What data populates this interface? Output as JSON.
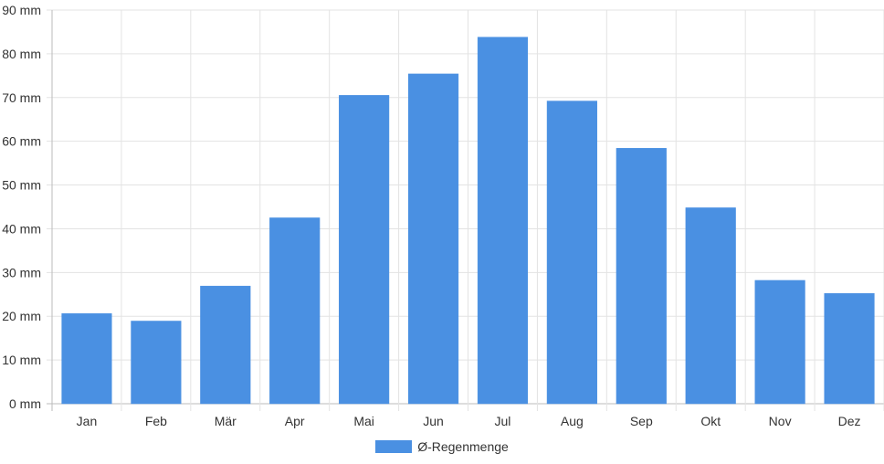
{
  "chart_data": {
    "type": "bar",
    "categories": [
      "Jan",
      "Feb",
      "Mär",
      "Apr",
      "Mai",
      "Jun",
      "Jul",
      "Aug",
      "Sep",
      "Okt",
      "Nov",
      "Dez"
    ],
    "series": [
      {
        "name": "Ø-Regenmenge",
        "values": [
          20.6,
          18.9,
          26.9,
          42.5,
          70.5,
          75.4,
          83.8,
          69.2,
          58.4,
          44.8,
          28.2,
          25.2
        ],
        "color": "#4a90e2"
      }
    ],
    "y_unit": "mm",
    "ylim": [
      0,
      90
    ],
    "y_ticks": [
      "0 mm",
      "10 mm",
      "20 mm",
      "30 mm",
      "40 mm",
      "50 mm",
      "60 mm",
      "70 mm",
      "80 mm",
      "90 mm"
    ],
    "grid": true,
    "legend_position": "bottom"
  }
}
